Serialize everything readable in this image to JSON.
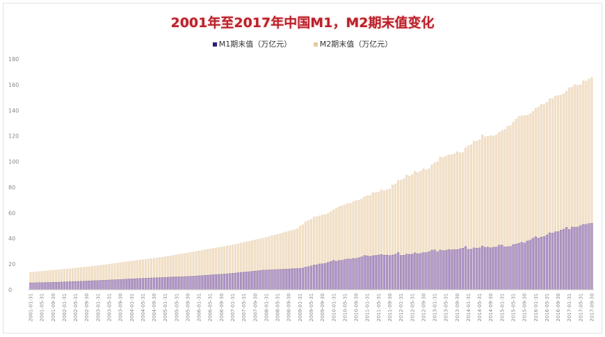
{
  "chart_data": {
    "type": "bar",
    "title": "2001年至2017年中国M1，M2期末值变化",
    "xlabel": "",
    "ylabel": "",
    "ylim": [
      0,
      180
    ],
    "yticks": [
      0,
      20,
      40,
      60,
      80,
      100,
      120,
      140,
      160,
      180
    ],
    "grid": false,
    "legend_position": "top",
    "x_start": "2001-01",
    "x_end": "2017-09",
    "x_frequency": "monthly (month-end)",
    "x_tick_labels": [
      "2001-01-31",
      "2001-05-31",
      "2001-09-30",
      "2002-01-31",
      "2002-05-31",
      "2002-09-30",
      "2003-01-31",
      "2003-05-31",
      "2003-09-30",
      "2004-01-31",
      "2004-05-31",
      "2004-09-30",
      "2005-01-31",
      "2005-05-31",
      "2005-09-30",
      "2006-01-31",
      "2006-05-31",
      "2006-09-30",
      "2007-01-31",
      "2007-05-31",
      "2007-09-30",
      "2008-01-31",
      "2008-05-31",
      "2008-09-30",
      "2009-01-31",
      "2009-05-31",
      "2009-09-30",
      "2010-01-31",
      "2010-05-31",
      "2010-09-30",
      "2011-01-31",
      "2011-05-31",
      "2011-09-30",
      "2012-01-31",
      "2012-05-31",
      "2012-09-30",
      "2013-01-31",
      "2013-05-31",
      "2013-09-30",
      "2014-01-31",
      "2014-05-31",
      "2014-09-30",
      "2015-01-31",
      "2015-05-31",
      "2015-09-30",
      "2016-01-31",
      "2016-05-31",
      "2016-09-30",
      "2017-01-31",
      "2017-05-31",
      "2017-09-30"
    ],
    "series": [
      {
        "name": "M1期末值（万亿元）",
        "color": "#b79ccd",
        "legend_color": "#2a1f7a",
        "values": [
          5.4,
          5.4,
          5.5,
          5.5,
          5.6,
          5.6,
          5.7,
          5.7,
          5.8,
          5.8,
          5.9,
          6.0,
          6.1,
          6.2,
          6.3,
          6.4,
          6.5,
          6.5,
          6.6,
          6.7,
          6.8,
          6.9,
          7.0,
          7.1,
          7.2,
          7.3,
          7.4,
          7.5,
          7.6,
          7.7,
          7.8,
          7.9,
          8.0,
          8.1,
          8.3,
          8.4,
          8.5,
          8.6,
          8.7,
          8.8,
          8.9,
          9.0,
          9.1,
          9.2,
          9.3,
          9.4,
          9.5,
          9.6,
          9.7,
          9.8,
          9.9,
          10.0,
          10.0,
          10.1,
          10.2,
          10.3,
          10.4,
          10.5,
          10.6,
          10.7,
          10.9,
          11.0,
          11.2,
          11.3,
          11.5,
          11.7,
          11.8,
          12.0,
          12.1,
          12.3,
          12.4,
          12.6,
          12.8,
          13.0,
          13.3,
          13.5,
          13.7,
          13.9,
          14.1,
          14.4,
          14.6,
          14.8,
          15.1,
          15.3,
          15.4,
          15.5,
          15.6,
          15.7,
          15.8,
          15.9,
          16.0,
          16.1,
          16.2,
          16.4,
          16.5,
          16.6,
          16.6,
          16.9,
          17.6,
          18.0,
          18.6,
          19.3,
          19.5,
          20.1,
          20.2,
          20.6,
          21.3,
          22.0,
          22.9,
          22.2,
          22.9,
          23.0,
          23.6,
          24.0,
          23.9,
          24.4,
          24.4,
          25.0,
          25.6,
          26.7,
          26.5,
          26.0,
          26.6,
          26.8,
          27.1,
          27.5,
          27.0,
          27.1,
          26.7,
          27.1,
          27.7,
          29.0,
          26.8,
          27.0,
          27.8,
          27.6,
          27.8,
          28.8,
          28.1,
          28.4,
          29.0,
          29.0,
          29.7,
          30.9,
          31.1,
          29.6,
          31.0,
          30.5,
          30.7,
          31.4,
          31.1,
          31.4,
          31.3,
          31.9,
          32.4,
          33.7,
          31.5,
          31.6,
          32.7,
          32.4,
          32.7,
          34.1,
          33.1,
          33.2,
          32.7,
          33.2,
          33.3,
          34.8,
          34.8,
          33.4,
          33.7,
          33.7,
          35.2,
          35.6,
          36.3,
          37.0,
          36.4,
          38.0,
          38.6,
          40.1,
          41.3,
          40.2,
          41.1,
          41.5,
          42.8,
          44.4,
          44.2,
          45.2,
          45.4,
          46.5,
          47.2,
          48.7,
          47.0,
          48.9,
          48.8,
          48.9,
          50.1,
          51.0,
          51.0,
          51.7,
          51.8
        ]
      },
      {
        "name": "M2期末值（万亿元）",
        "color": "#f2e0c6",
        "legend_color": "#e6c9a0",
        "values": [
          13.6,
          13.8,
          14.0,
          14.2,
          14.4,
          14.6,
          14.8,
          15.0,
          15.2,
          15.4,
          15.6,
          15.8,
          16.0,
          16.3,
          16.5,
          16.7,
          16.9,
          17.2,
          17.4,
          17.6,
          17.8,
          18.1,
          18.3,
          18.5,
          18.8,
          19.1,
          19.4,
          19.7,
          20.0,
          20.3,
          20.6,
          20.9,
          21.2,
          21.5,
          21.8,
          22.1,
          22.4,
          22.7,
          22.9,
          23.2,
          23.5,
          23.8,
          24.0,
          24.3,
          24.6,
          24.9,
          25.1,
          25.4,
          25.8,
          26.2,
          26.5,
          26.9,
          27.3,
          27.7,
          28.0,
          28.4,
          28.8,
          29.2,
          29.5,
          29.9,
          30.3,
          30.7,
          31.1,
          31.5,
          31.9,
          32.3,
          32.6,
          33.0,
          33.4,
          33.8,
          34.2,
          34.6,
          35.1,
          35.5,
          36.0,
          36.5,
          37.0,
          37.5,
          37.9,
          38.4,
          38.9,
          39.4,
          39.8,
          40.3,
          40.9,
          41.5,
          42.1,
          42.7,
          43.3,
          43.9,
          44.5,
          45.1,
          45.7,
          46.3,
          46.9,
          47.5,
          49.6,
          50.7,
          53.1,
          54.0,
          54.8,
          56.9,
          57.1,
          57.7,
          58.6,
          58.7,
          59.5,
          61.0,
          62.6,
          63.6,
          64.9,
          65.6,
          66.3,
          67.4,
          67.4,
          68.8,
          69.6,
          69.9,
          71.0,
          72.6,
          73.3,
          73.7,
          75.8,
          75.7,
          76.3,
          78.1,
          77.3,
          78.1,
          78.7,
          81.7,
          82.5,
          85.2,
          85.6,
          86.7,
          89.6,
          88.9,
          90.0,
          92.5,
          91.5,
          92.5,
          94.4,
          93.6,
          94.5,
          97.4,
          99.2,
          99.9,
          103.6,
          103.3,
          104.2,
          105.4,
          105.2,
          106.1,
          107.7,
          107.0,
          107.1,
          110.7,
          112.4,
          113.2,
          116.1,
          116.0,
          117.0,
          120.9,
          119.4,
          119.7,
          120.2,
          119.9,
          120.9,
          122.8,
          124.3,
          125.1,
          127.5,
          128.1,
          130.8,
          133.3,
          135.3,
          135.6,
          136.0,
          136.1,
          137.4,
          139.2,
          141.6,
          142.5,
          144.6,
          144.5,
          146.2,
          149.1,
          149.2,
          151.1,
          151.6,
          151.9,
          153.0,
          155.0,
          157.6,
          158.3,
          160.0,
          159.6,
          160.1,
          163.1,
          162.9,
          164.5,
          165.6
        ]
      }
    ]
  }
}
